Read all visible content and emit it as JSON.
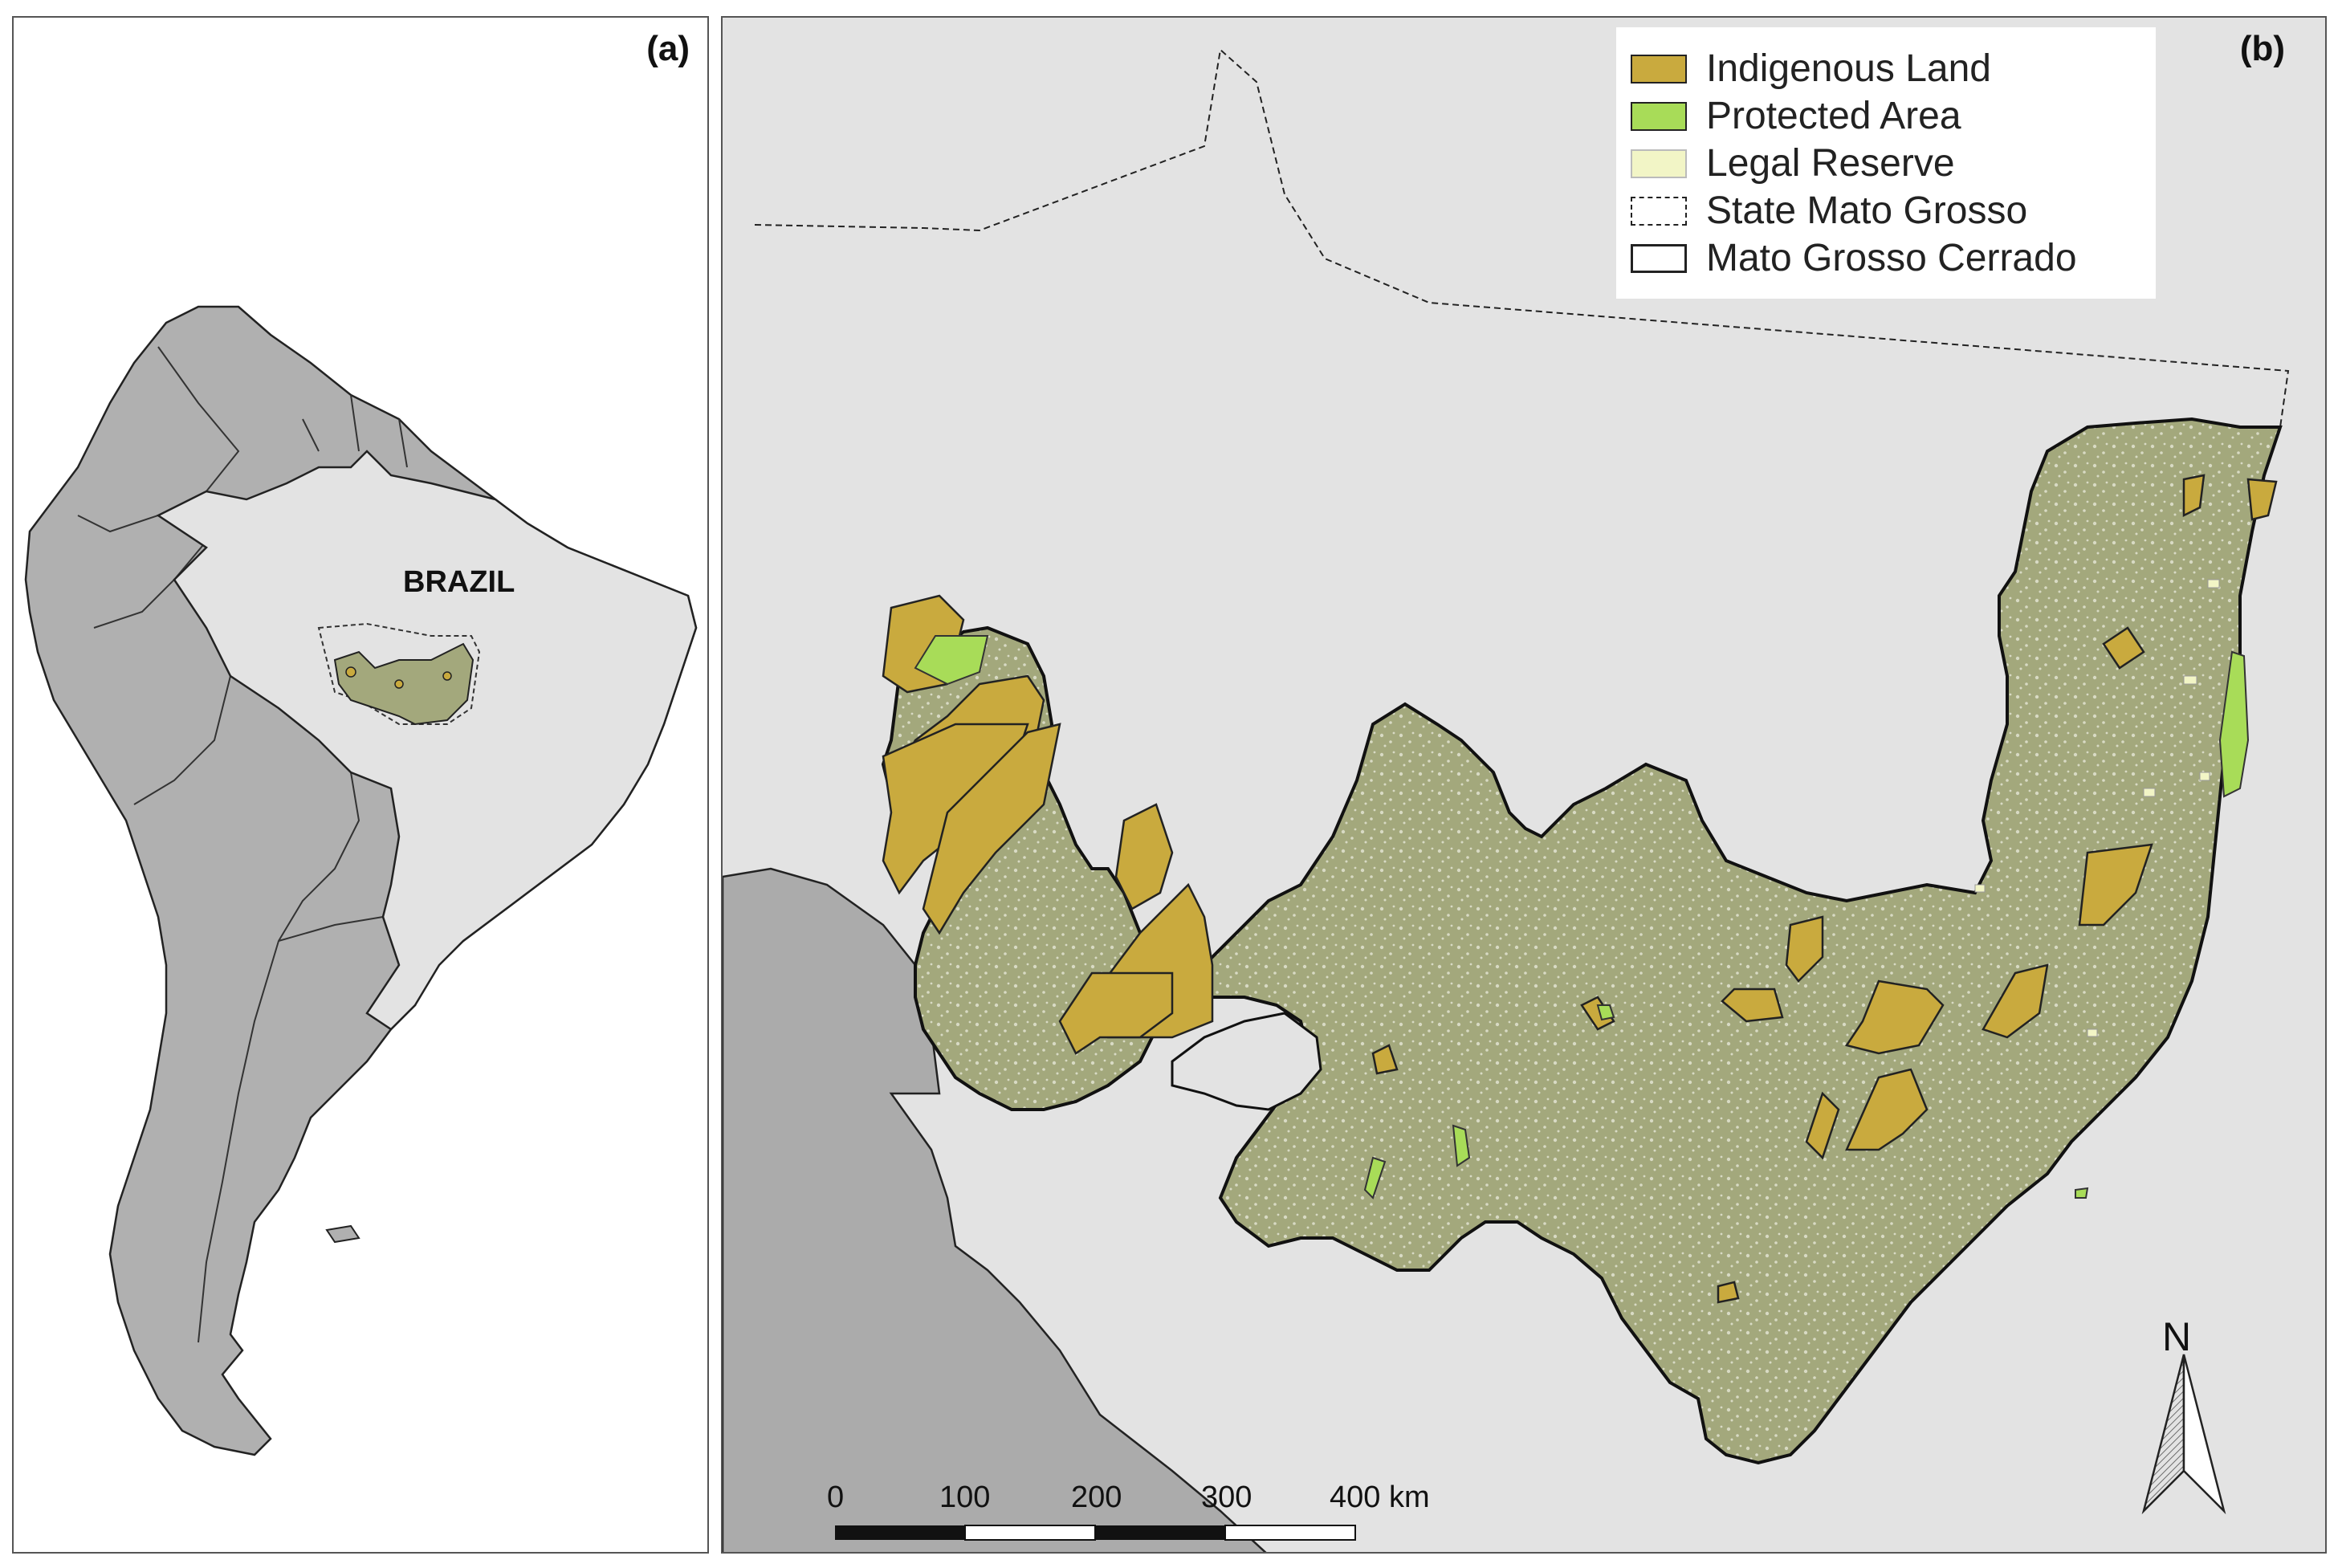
{
  "panel_a": {
    "label": "(a)",
    "country_label": "BRAZIL"
  },
  "panel_b": {
    "label": "(b)",
    "legend": [
      {
        "label": "Indigenous Land",
        "fill": "#c9aa3e",
        "border": "solid"
      },
      {
        "label": "Protected Area",
        "fill": "#a8dc58",
        "border": "solid"
      },
      {
        "label": "Legal Reserve",
        "fill": "#f2f5c6",
        "border": "solid"
      },
      {
        "label": "State Mato Grosso",
        "fill": "#ffffff",
        "border": "dashed"
      },
      {
        "label": "Mato Grosso Cerrado",
        "fill": "#ffffff",
        "border": "solid"
      }
    ],
    "scale_bar": {
      "ticks": [
        "0",
        "100",
        "200",
        "300",
        "400 km"
      ]
    },
    "north_arrow": "N"
  },
  "colors": {
    "neighbor_countries": "#b0b0b0",
    "brazil": "#e3e3e3",
    "cerrado": "#a3a87c",
    "indigenous_land": "#c9aa3e",
    "protected_area": "#a8dc58",
    "legal_reserve": "#f2f5c6",
    "dark_gray_region": "#ababab"
  }
}
